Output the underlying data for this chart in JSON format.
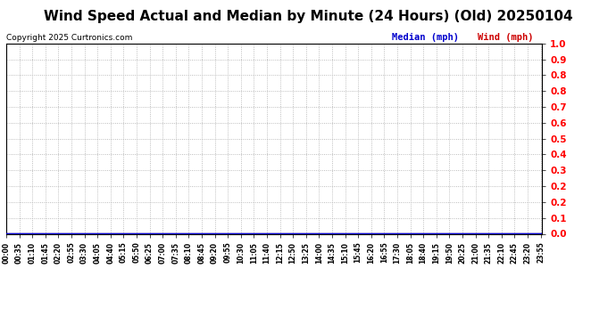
{
  "title": "Wind Speed Actual and Median by Minute (24 Hours) (Old) 20250104",
  "copyright": "Copyright 2025 Curtronics.com",
  "legend_median_label": "Median (mph)",
  "legend_wind_label": "Wind (mph)",
  "legend_median_color": "#0000cc",
  "legend_wind_color": "#cc0000",
  "background_color": "#ffffff",
  "plot_background_color": "#ffffff",
  "title_fontsize": 11,
  "title_fontweight": "bold",
  "ylim": [
    0.0,
    1.0
  ],
  "ytick_labels": [
    "0.0",
    "0.1",
    "0.2",
    "0.2",
    "0.3",
    "0.4",
    "0.5",
    "0.6",
    "0.7",
    "0.8",
    "0.8",
    "0.9",
    "1.0"
  ],
  "grid_color": "#aaaaaa",
  "grid_linestyle": ":",
  "line_color_median": "#0000cc",
  "line_color_wind": "#cc0000",
  "xtick_labels": [
    "00:00",
    "00:35",
    "01:10",
    "01:45",
    "02:20",
    "02:55",
    "03:30",
    "04:05",
    "04:40",
    "05:15",
    "05:50",
    "06:25",
    "07:00",
    "07:35",
    "08:10",
    "08:45",
    "09:20",
    "09:55",
    "10:30",
    "11:05",
    "11:40",
    "12:15",
    "12:50",
    "13:25",
    "14:00",
    "14:35",
    "15:10",
    "15:45",
    "16:20",
    "16:55",
    "17:30",
    "18:05",
    "18:40",
    "19:15",
    "19:50",
    "20:25",
    "21:00",
    "21:35",
    "22:10",
    "22:45",
    "23:20",
    "23:55"
  ]
}
